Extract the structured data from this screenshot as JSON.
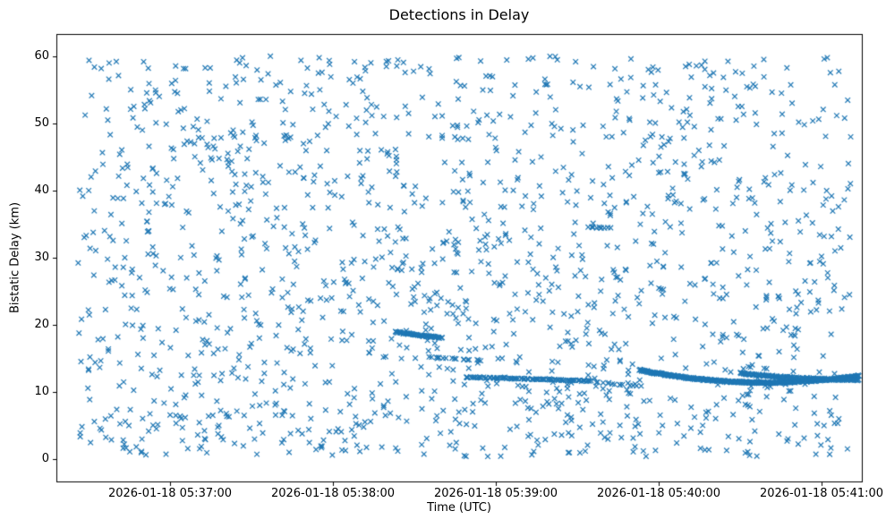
{
  "chart_data": {
    "type": "scatter",
    "title": "Detections in Delay",
    "xlabel": "Time (UTC)",
    "ylabel": "Bistatic Delay (km)",
    "marker": "x",
    "color": "#1f77b4",
    "legend": "none",
    "grid": false,
    "x_axis": {
      "range": [
        0,
        297
      ],
      "units": "seconds since 2026-01-18 05:36:18 UTC",
      "tick_positions": [
        42,
        102,
        162,
        222,
        282
      ],
      "tick_labels": [
        "2026-01-18 05:37:00",
        "2026-01-18 05:38:00",
        "2026-01-18 05:39:00",
        "2026-01-18 05:40:00",
        "2026-01-18 05:41:00"
      ]
    },
    "y_axis": {
      "range": [
        -3.3,
        63.3
      ],
      "tick_positions": [
        0,
        10,
        20,
        30,
        40,
        50,
        60
      ],
      "tick_labels": [
        "0",
        "10",
        "20",
        "30",
        "40",
        "50",
        "60"
      ]
    },
    "noise": {
      "description": "uniform random clutter detections",
      "count": 1600,
      "x_range": [
        8,
        293
      ],
      "y_range": [
        0.4,
        60
      ],
      "seed": 1337
    },
    "tracks": [
      {
        "name": "track-arc-18km",
        "t": [
          125,
          142
        ],
        "y": [
          18.95,
          18.5,
          18.1
        ],
        "count": 60,
        "jitter": 0.15
      },
      {
        "name": "track-15km",
        "t": [
          138,
          157
        ],
        "y": [
          15.2,
          14.95,
          14.7
        ],
        "count": 16,
        "jitter": 0.12
      },
      {
        "name": "track-12km",
        "t": [
          151,
          197
        ],
        "y": [
          12.25,
          11.95,
          11.65
        ],
        "count": 95,
        "jitter": 0.1
      },
      {
        "name": "track-12km-fade",
        "t": [
          198,
          215
        ],
        "y": [
          11.5,
          11.2,
          10.9
        ],
        "count": 13,
        "jitter": 0.12
      },
      {
        "name": "track-main-arc",
        "t": [
          215,
          296
        ],
        "y": [
          13.3,
          11.45,
          12.45
        ],
        "count": 380,
        "jitter": 0.16
      },
      {
        "name": "track-secondary-band",
        "t": [
          252,
          296
        ],
        "y": [
          12.8,
          12.1,
          11.8
        ],
        "count": 150,
        "jitter": 0.15
      },
      {
        "name": "cluster-34km",
        "t": [
          196,
          204
        ],
        "y": [
          34.6,
          34.5,
          34.45
        ],
        "count": 11,
        "jitter": 0.12
      }
    ]
  }
}
